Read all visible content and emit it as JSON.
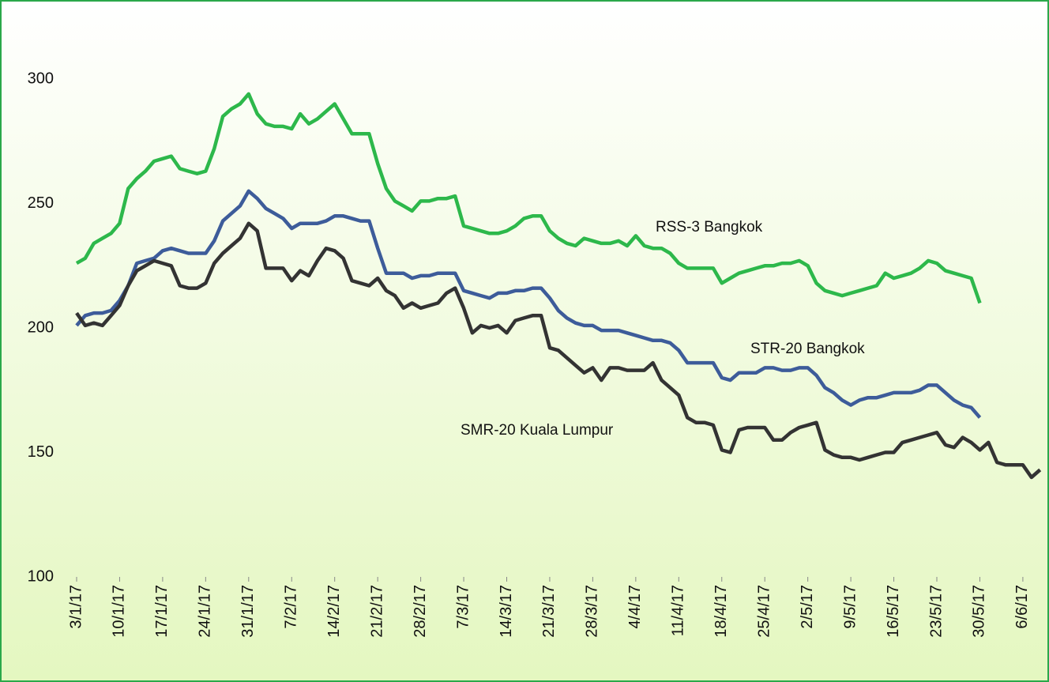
{
  "chart_data": {
    "type": "line",
    "categories": [
      "3/1/17",
      null,
      null,
      null,
      null,
      "10/1/17",
      null,
      null,
      null,
      null,
      "17/1/17",
      null,
      null,
      null,
      null,
      "24/1/17",
      null,
      null,
      null,
      null,
      "31/1/17",
      null,
      null,
      null,
      null,
      "7/2/17",
      null,
      null,
      null,
      null,
      "14/2/17",
      null,
      null,
      null,
      null,
      "21/2/17",
      null,
      null,
      null,
      null,
      "28/2/17",
      null,
      null,
      null,
      null,
      "7/3/17",
      null,
      null,
      null,
      null,
      "14/3/17",
      null,
      null,
      null,
      null,
      "21/3/17",
      null,
      null,
      null,
      null,
      "28/3/17",
      null,
      null,
      null,
      null,
      "4/4/17",
      null,
      null,
      null,
      null,
      "11/4/17",
      null,
      null,
      null,
      null,
      "18/4/17",
      null,
      null,
      null,
      null,
      "25/4/17",
      null,
      null,
      null,
      null,
      "2/5/17",
      null,
      null,
      null,
      null,
      "9/5/17",
      null,
      null,
      null,
      null,
      "16/5/17",
      null,
      null,
      null,
      null,
      "23/5/17",
      null,
      null,
      null,
      null,
      "30/5/17",
      null,
      null,
      null,
      null,
      "6/6/17",
      null,
      null
    ],
    "series": [
      {
        "name": "RSS-3 Bangkok",
        "color": "#2db84b",
        "values": [
          226,
          228,
          234,
          236,
          238,
          242,
          256,
          260,
          263,
          267,
          268,
          269,
          264,
          263,
          262,
          263,
          272,
          285,
          288,
          290,
          294,
          286,
          282,
          281,
          281,
          280,
          286,
          282,
          284,
          287,
          290,
          284,
          278,
          278,
          278,
          266,
          256,
          251,
          249,
          247,
          251,
          251,
          252,
          252,
          253,
          241,
          240,
          239,
          238,
          238,
          239,
          241,
          244,
          245,
          245,
          239,
          236,
          234,
          233,
          236,
          235,
          234,
          234,
          235,
          233,
          237,
          233,
          232,
          232,
          230,
          226,
          224,
          224,
          224,
          224,
          218,
          220,
          222,
          223,
          224,
          225,
          225,
          226,
          226,
          227,
          225,
          218,
          215,
          214,
          213,
          214,
          215,
          216,
          217,
          222,
          220,
          221,
          222,
          224,
          227,
          226,
          223,
          222,
          221,
          220,
          210,
          null,
          null,
          null,
          null,
          null,
          null,
          null
        ]
      },
      {
        "name": "STR-20 Bangkok",
        "color": "#3d5c9a",
        "values": [
          201,
          205,
          206,
          206,
          207,
          211,
          217,
          226,
          227,
          228,
          231,
          232,
          231,
          230,
          230,
          230,
          235,
          243,
          246,
          249,
          255,
          252,
          248,
          246,
          244,
          240,
          242,
          242,
          242,
          243,
          245,
          245,
          244,
          243,
          243,
          232,
          222,
          222,
          222,
          220,
          221,
          221,
          222,
          222,
          222,
          215,
          214,
          213,
          212,
          214,
          214,
          215,
          215,
          216,
          216,
          212,
          207,
          204,
          202,
          201,
          201,
          199,
          199,
          199,
          198,
          197,
          196,
          195,
          195,
          194,
          191,
          186,
          186,
          186,
          186,
          180,
          179,
          182,
          182,
          182,
          184,
          184,
          183,
          183,
          184,
          184,
          181,
          176,
          174,
          171,
          169,
          171,
          172,
          172,
          173,
          174,
          174,
          174,
          175,
          177,
          177,
          174,
          171,
          169,
          168,
          164,
          null,
          null,
          null,
          null,
          null,
          null,
          null
        ]
      },
      {
        "name": "SMR-20 Kuala Lumpur",
        "color": "#333333",
        "values": [
          206,
          201,
          202,
          201,
          205,
          209,
          217,
          223,
          225,
          227,
          226,
          225,
          217,
          216,
          216,
          218,
          226,
          230,
          233,
          236,
          242,
          239,
          224,
          224,
          224,
          219,
          223,
          221,
          227,
          232,
          231,
          228,
          219,
          218,
          217,
          220,
          215,
          213,
          208,
          210,
          208,
          209,
          210,
          214,
          216,
          208,
          198,
          201,
          200,
          201,
          198,
          203,
          204,
          205,
          205,
          192,
          191,
          188,
          185,
          182,
          184,
          179,
          184,
          184,
          183,
          183,
          183,
          186,
          179,
          176,
          173,
          164,
          162,
          162,
          161,
          151,
          150,
          159,
          160,
          160,
          160,
          155,
          155,
          158,
          160,
          161,
          162,
          151,
          149,
          148,
          148,
          147,
          148,
          149,
          150,
          150,
          154,
          155,
          156,
          157,
          158,
          153,
          152,
          156,
          154,
          151,
          154,
          146,
          145,
          145,
          145,
          140,
          143
        ]
      }
    ],
    "annotations": [
      "RSS-3 Bangkok",
      "STR-20 Bangkok",
      "SMR-20 Kuala Lumpur"
    ],
    "ylim": [
      100,
      300
    ],
    "yticks": [
      100,
      150,
      200,
      250,
      300
    ],
    "grid": false
  }
}
